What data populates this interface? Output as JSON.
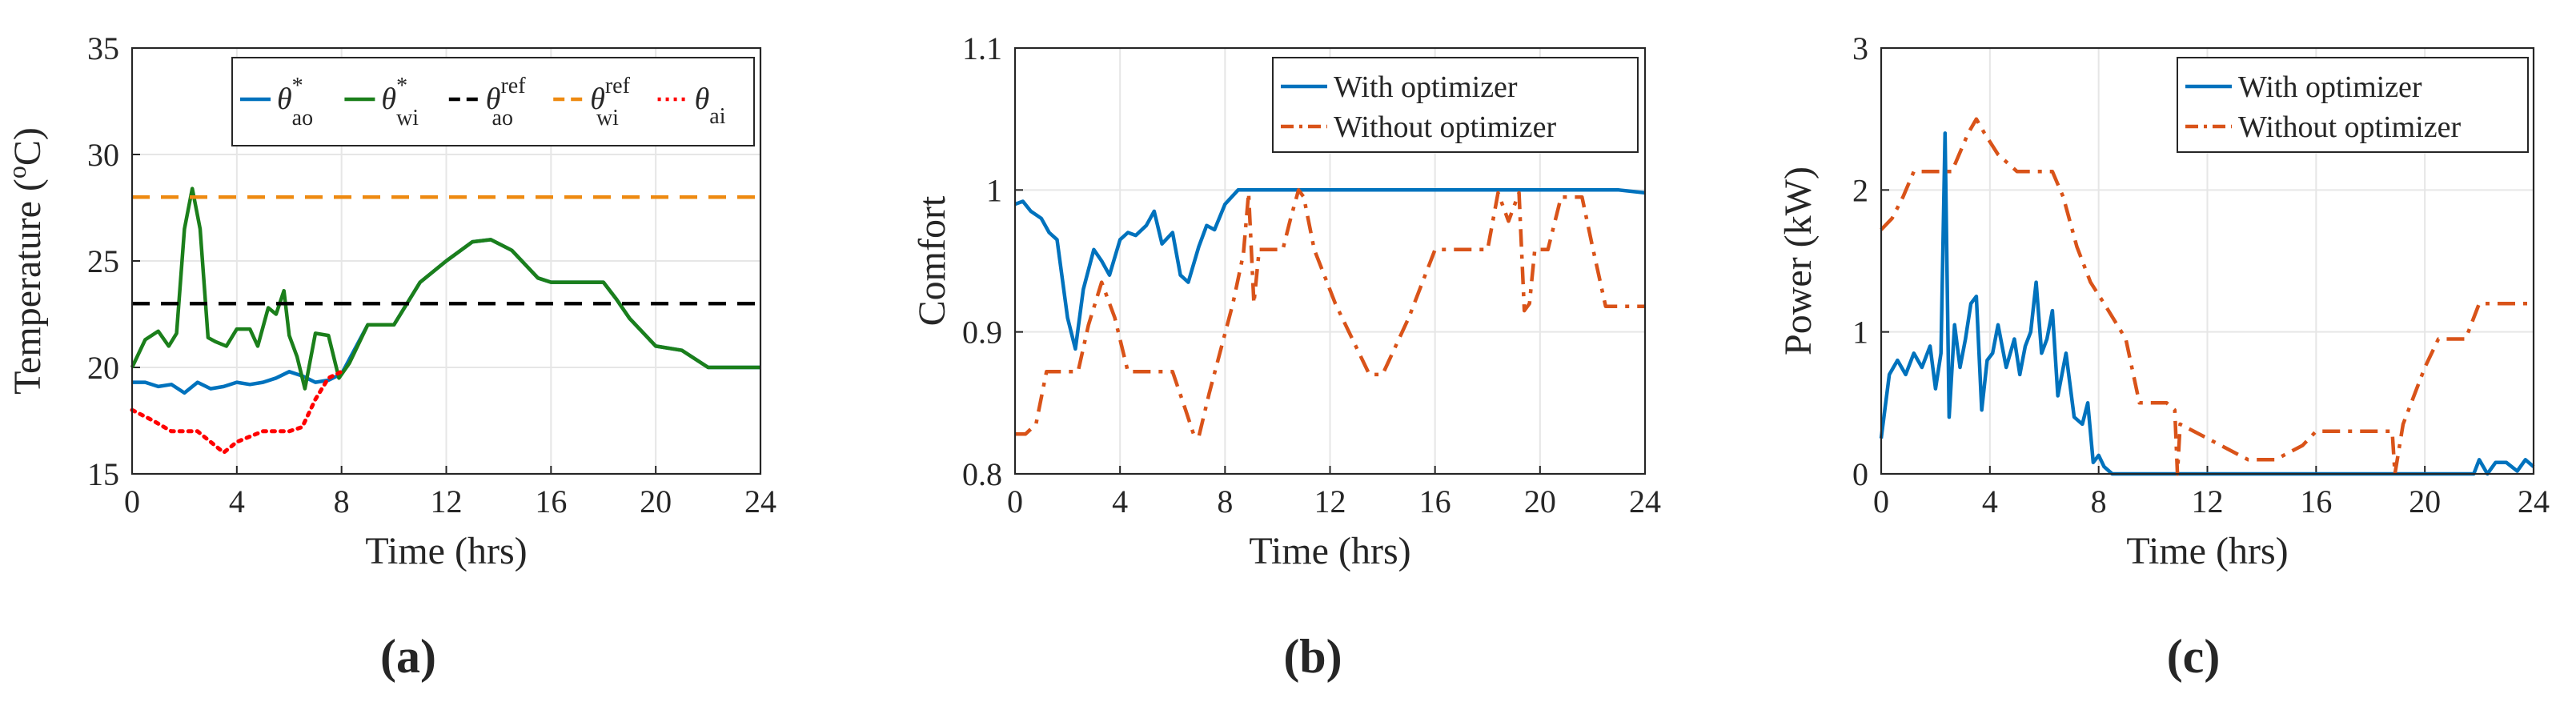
{
  "panels": [
    {
      "id": "a",
      "caption": "(a)",
      "xlabel": "Time (hrs)",
      "ylabel": "Temperature (",
      "ylabel_sup": "o",
      "ylabel_end": "C)",
      "legend": [
        {
          "sym": "θ",
          "sup": "*",
          "sub": "ao"
        },
        {
          "sym": "θ",
          "sup": "*",
          "sub": "wi"
        },
        {
          "sym": "θ",
          "sup": "ref",
          "sub": "ao"
        },
        {
          "sym": "θ",
          "sup": "ref",
          "sub": "wi"
        },
        {
          "sym": "θ",
          "sup": "",
          "sub": "ai"
        }
      ]
    },
    {
      "id": "b",
      "caption": "(b)",
      "xlabel": "Time (hrs)",
      "ylabel": "Comfort",
      "legend": [
        {
          "label": "With optimizer"
        },
        {
          "label": "Without optimizer"
        }
      ]
    },
    {
      "id": "c",
      "caption": "(c)",
      "xlabel": "Time (hrs)",
      "ylabel": "Power (kW)",
      "legend": [
        {
          "label": "With optimizer"
        },
        {
          "label": "Without optimizer"
        }
      ]
    }
  ],
  "chart_data": [
    {
      "type": "line",
      "title": "(a)",
      "xlabel": "Time (hrs)",
      "ylabel": "Temperature (oC)",
      "xlim": [
        0,
        24
      ],
      "ylim": [
        15,
        35
      ],
      "xticks": [
        "0",
        "4",
        "8",
        "12",
        "16",
        "20",
        "24"
      ],
      "yticks": [
        "15",
        "20",
        "25",
        "30",
        "35"
      ],
      "grid": true,
      "legend_position": "top",
      "series": [
        {
          "name": "θ*ao",
          "color": "#0072BD",
          "style": "solid",
          "x": [
            0,
            0.5,
            1,
            1.5,
            2,
            2.5,
            3,
            3.5,
            4,
            4.5,
            5,
            5.5,
            6,
            6.5,
            7,
            7.5,
            8,
            9,
            10,
            11,
            12,
            13,
            13.7,
            14.5,
            15.5,
            16,
            17,
            18,
            18.5,
            19,
            20,
            21,
            22,
            23,
            24
          ],
          "y": [
            19.3,
            19.3,
            19.1,
            19.2,
            18.8,
            19.3,
            19.0,
            19.1,
            19.3,
            19.2,
            19.3,
            19.5,
            19.8,
            19.6,
            19.3,
            19.4,
            19.7,
            22,
            22,
            24,
            25,
            25.9,
            26,
            25.5,
            24.2,
            24,
            24,
            24,
            23.2,
            22.3,
            21,
            20.8,
            20,
            20,
            20
          ]
        },
        {
          "name": "θ*wi",
          "color": "#1B7F1B",
          "style": "solid",
          "x": [
            0,
            0.5,
            1,
            1.4,
            1.7,
            2,
            2.3,
            2.6,
            2.9,
            3.2,
            3.6,
            4,
            4.5,
            4.8,
            5.2,
            5.5,
            5.8,
            6,
            6.3,
            6.6,
            7,
            7.5,
            7.9,
            8.3,
            9,
            10,
            11,
            12,
            13,
            13.7,
            14.5,
            15.5,
            16,
            17,
            18,
            18.5,
            19,
            20,
            21,
            22,
            23,
            24
          ],
          "y": [
            20,
            21.3,
            21.7,
            21.0,
            21.6,
            26.5,
            28.4,
            26.5,
            21.4,
            21.2,
            21.0,
            21.8,
            21.8,
            21.0,
            22.8,
            22.5,
            23.6,
            21.5,
            20.5,
            19.0,
            21.6,
            21.5,
            19.5,
            20.2,
            22,
            22,
            24,
            25,
            25.9,
            26,
            25.5,
            24.2,
            24,
            24,
            24,
            23.2,
            22.3,
            21,
            20.8,
            20,
            20,
            20
          ]
        },
        {
          "name": "θref ao",
          "color": "#000000",
          "style": "dashed",
          "x": [
            0,
            24
          ],
          "y": [
            23,
            23
          ]
        },
        {
          "name": "θref wi",
          "color": "#EE8A11",
          "style": "dashed",
          "x": [
            0,
            24
          ],
          "y": [
            28,
            28
          ]
        },
        {
          "name": "θai",
          "color": "#FF0000",
          "style": "dotted",
          "x": [
            0,
            0.8,
            1.5,
            2.5,
            3,
            3.5,
            4,
            5,
            6,
            6.5,
            7,
            7.5,
            8
          ],
          "y": [
            18,
            17.5,
            17,
            17,
            16.5,
            16,
            16.5,
            17,
            17,
            17.2,
            18.5,
            19.5,
            19.8
          ]
        }
      ]
    },
    {
      "type": "line",
      "title": "(b)",
      "xlabel": "Time (hrs)",
      "ylabel": "Comfort",
      "xlim": [
        0,
        24
      ],
      "ylim": [
        0.8,
        1.1
      ],
      "xticks": [
        "0",
        "4",
        "8",
        "12",
        "16",
        "20",
        "24"
      ],
      "yticks": [
        "0.8",
        "0.9",
        "1",
        "1.1"
      ],
      "grid": true,
      "legend_position": "top-right",
      "series": [
        {
          "name": "With optimizer",
          "color": "#0072BD",
          "style": "solid",
          "x": [
            0,
            0.3,
            0.6,
            1,
            1.3,
            1.6,
            2,
            2.3,
            2.6,
            3,
            3.3,
            3.6,
            4,
            4.3,
            4.6,
            5,
            5.3,
            5.6,
            6,
            6.3,
            6.6,
            7,
            7.3,
            7.6,
            8,
            8.5,
            9,
            10,
            12,
            14,
            16,
            18,
            20,
            22,
            23,
            24
          ],
          "y": [
            0.99,
            0.992,
            0.985,
            0.98,
            0.97,
            0.965,
            0.91,
            0.888,
            0.93,
            0.958,
            0.95,
            0.94,
            0.965,
            0.97,
            0.968,
            0.975,
            0.985,
            0.962,
            0.97,
            0.94,
            0.935,
            0.96,
            0.975,
            0.972,
            0.99,
            1.0,
            1.0,
            1.0,
            1.0,
            1.0,
            1.0,
            1.0,
            1.0,
            1.0,
            1.0,
            0.998
          ]
        },
        {
          "name": "Without optimizer",
          "color": "#D95319",
          "style": "dashdot",
          "x": [
            0,
            0.4,
            0.8,
            1.2,
            2.0,
            2.4,
            2.8,
            3.3,
            3.8,
            4.3,
            5.0,
            6.0,
            6.5,
            6.8,
            7.0,
            7.4,
            7.8,
            8.3,
            8.7,
            8.9,
            9.1,
            9.3,
            9.6,
            10.2,
            10.5,
            10.8,
            11.0,
            11.4,
            12.2,
            13.5,
            14,
            15,
            16,
            17,
            18,
            18.4,
            18.8,
            19.2,
            19.4,
            19.6,
            19.8,
            20.3,
            20.8,
            21.2,
            21.6,
            22,
            22.5,
            23,
            24
          ],
          "y": [
            0.828,
            0.828,
            0.835,
            0.872,
            0.872,
            0.872,
            0.905,
            0.935,
            0.91,
            0.872,
            0.872,
            0.872,
            0.845,
            0.828,
            0.826,
            0.857,
            0.885,
            0.92,
            0.955,
            0.998,
            0.92,
            0.958,
            0.958,
            0.958,
            0.98,
            1.0,
            0.995,
            0.958,
            0.92,
            0.87,
            0.87,
            0.91,
            0.958,
            0.958,
            0.958,
            0.998,
            0.978,
            0.998,
            0.915,
            0.92,
            0.958,
            0.958,
            0.995,
            0.995,
            0.995,
            0.96,
            0.918,
            0.918,
            0.918
          ]
        }
      ]
    },
    {
      "type": "line",
      "title": "(c)",
      "xlabel": "Time (hrs)",
      "ylabel": "Power (kW)",
      "xlim": [
        0,
        24
      ],
      "ylim": [
        0,
        3
      ],
      "xticks": [
        "0",
        "4",
        "8",
        "12",
        "16",
        "20",
        "24"
      ],
      "yticks": [
        "0",
        "1",
        "2",
        "3"
      ],
      "grid": true,
      "legend_position": "top-right",
      "series": [
        {
          "name": "With optimizer",
          "color": "#0072BD",
          "style": "solid",
          "x": [
            0,
            0.3,
            0.6,
            0.9,
            1.2,
            1.5,
            1.8,
            2.0,
            2.2,
            2.35,
            2.5,
            2.7,
            2.9,
            3.1,
            3.3,
            3.5,
            3.7,
            3.9,
            4.1,
            4.3,
            4.6,
            4.9,
            5.1,
            5.3,
            5.5,
            5.7,
            5.9,
            6.1,
            6.3,
            6.5,
            6.8,
            7.1,
            7.4,
            7.6,
            7.8,
            8.0,
            8.2,
            8.5,
            9,
            12,
            16,
            20,
            21.8,
            22,
            22.3,
            22.6,
            23,
            23.4,
            23.7,
            24
          ],
          "y": [
            0.25,
            0.7,
            0.8,
            0.7,
            0.85,
            0.75,
            0.9,
            0.6,
            0.85,
            2.4,
            0.4,
            1.05,
            0.75,
            0.95,
            1.2,
            1.25,
            0.45,
            0.8,
            0.85,
            1.05,
            0.75,
            0.95,
            0.7,
            0.9,
            1.0,
            1.35,
            0.85,
            0.95,
            1.15,
            0.55,
            0.85,
            0.4,
            0.35,
            0.5,
            0.08,
            0.13,
            0.05,
            0.0,
            0.0,
            0.0,
            0.0,
            0.0,
            0.0,
            0.1,
            0.0,
            0.08,
            0.08,
            0.02,
            0.1,
            0.05
          ]
        },
        {
          "name": "Without optimizer",
          "color": "#D95319",
          "style": "dashdot",
          "x": [
            0,
            0.4,
            0.8,
            1.2,
            2.0,
            2.6,
            3.2,
            3.5,
            3.8,
            4.3,
            5.0,
            5.7,
            6.3,
            6.7,
            7.2,
            7.7,
            8.2,
            9.0,
            9.5,
            10.5,
            10.8,
            10.9,
            11.0,
            11.5,
            12.5,
            13.5,
            14.5,
            15.5,
            16,
            17,
            18,
            18.8,
            18.9,
            19.2,
            19.5,
            20,
            20.5,
            21,
            21.5,
            22,
            23,
            24
          ],
          "y": [
            1.72,
            1.8,
            1.95,
            2.13,
            2.13,
            2.13,
            2.4,
            2.5,
            2.4,
            2.25,
            2.13,
            2.13,
            2.13,
            1.95,
            1.6,
            1.35,
            1.2,
            0.95,
            0.5,
            0.5,
            0.45,
            0.0,
            0.35,
            0.3,
            0.2,
            0.1,
            0.1,
            0.2,
            0.3,
            0.3,
            0.3,
            0.3,
            0.0,
            0.35,
            0.5,
            0.75,
            0.95,
            0.95,
            0.95,
            1.2,
            1.2,
            1.2
          ]
        }
      ]
    }
  ]
}
